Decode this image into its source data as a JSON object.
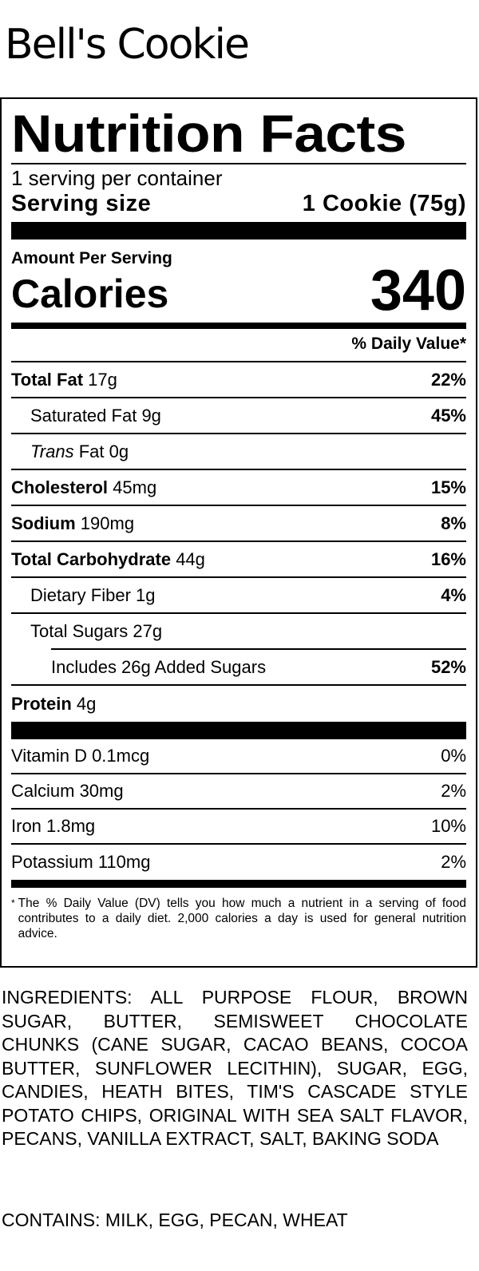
{
  "product_name": "Bell's Cookie",
  "label": {
    "title": "Nutrition Facts",
    "servings_per_container": "1 serving per container",
    "serving_size_label": "Serving size",
    "serving_size_value": "1 Cookie (75g)",
    "amount_per_serving": "Amount Per Serving",
    "calories_label": "Calories",
    "calories_value": "340",
    "daily_value_header": "% Daily Value*",
    "nutrients": [
      {
        "name": "Total Fat",
        "amount": "17g",
        "dv": "22%"
      },
      {
        "name": "Saturated Fat",
        "amount": "9g",
        "dv": "45%"
      },
      {
        "name": "Trans",
        "name_suffix": "Fat",
        "amount": "0g",
        "dv": ""
      },
      {
        "name": "Cholesterol",
        "amount": "45mg",
        "dv": "15%"
      },
      {
        "name": "Sodium",
        "amount": "190mg",
        "dv": "8%"
      },
      {
        "name": "Total Carbohydrate",
        "amount": "44g",
        "dv": "16%"
      },
      {
        "name": "Dietary Fiber",
        "amount": "1g",
        "dv": "4%"
      },
      {
        "name": "Total Sugars",
        "amount": "27g",
        "dv": ""
      },
      {
        "name": "Includes 26g Added Sugars",
        "amount": "",
        "dv": "52%"
      },
      {
        "name": "Protein",
        "amount": "4g",
        "dv": ""
      }
    ],
    "vitamins": [
      {
        "label": "Vitamin D 0.1mcg",
        "dv": "0%"
      },
      {
        "label": "Calcium 30mg",
        "dv": "2%"
      },
      {
        "label": "Iron 1.8mg",
        "dv": "10%"
      },
      {
        "label": "Potassium 110mg",
        "dv": "2%"
      }
    ],
    "footnote_marker": "*",
    "footnote": "The % Daily Value (DV) tells you how much a nutrient in a serving of food contributes to a daily diet. 2,000 calories a day is used for general nutrition advice."
  },
  "ingredients": "INGREDIENTS: ALL PURPOSE FLOUR, BROWN SUGAR, BUTTER, SEMISWEET CHOCOLATE CHUNKS (CANE SUGAR, CACAO BEANS, COCOA BUTTER, SUNFLOWER LECITHIN), SUGAR, EGG, CANDIES, HEATH BITES, TIM'S CASCADE STYLE POTATO CHIPS, ORIGINAL WITH SEA SALT FLAVOR, PECANS, VANILLA EXTRACT, SALT, BAKING SODA",
  "contains": "CONTAINS: MILK, EGG, PECAN, WHEAT"
}
